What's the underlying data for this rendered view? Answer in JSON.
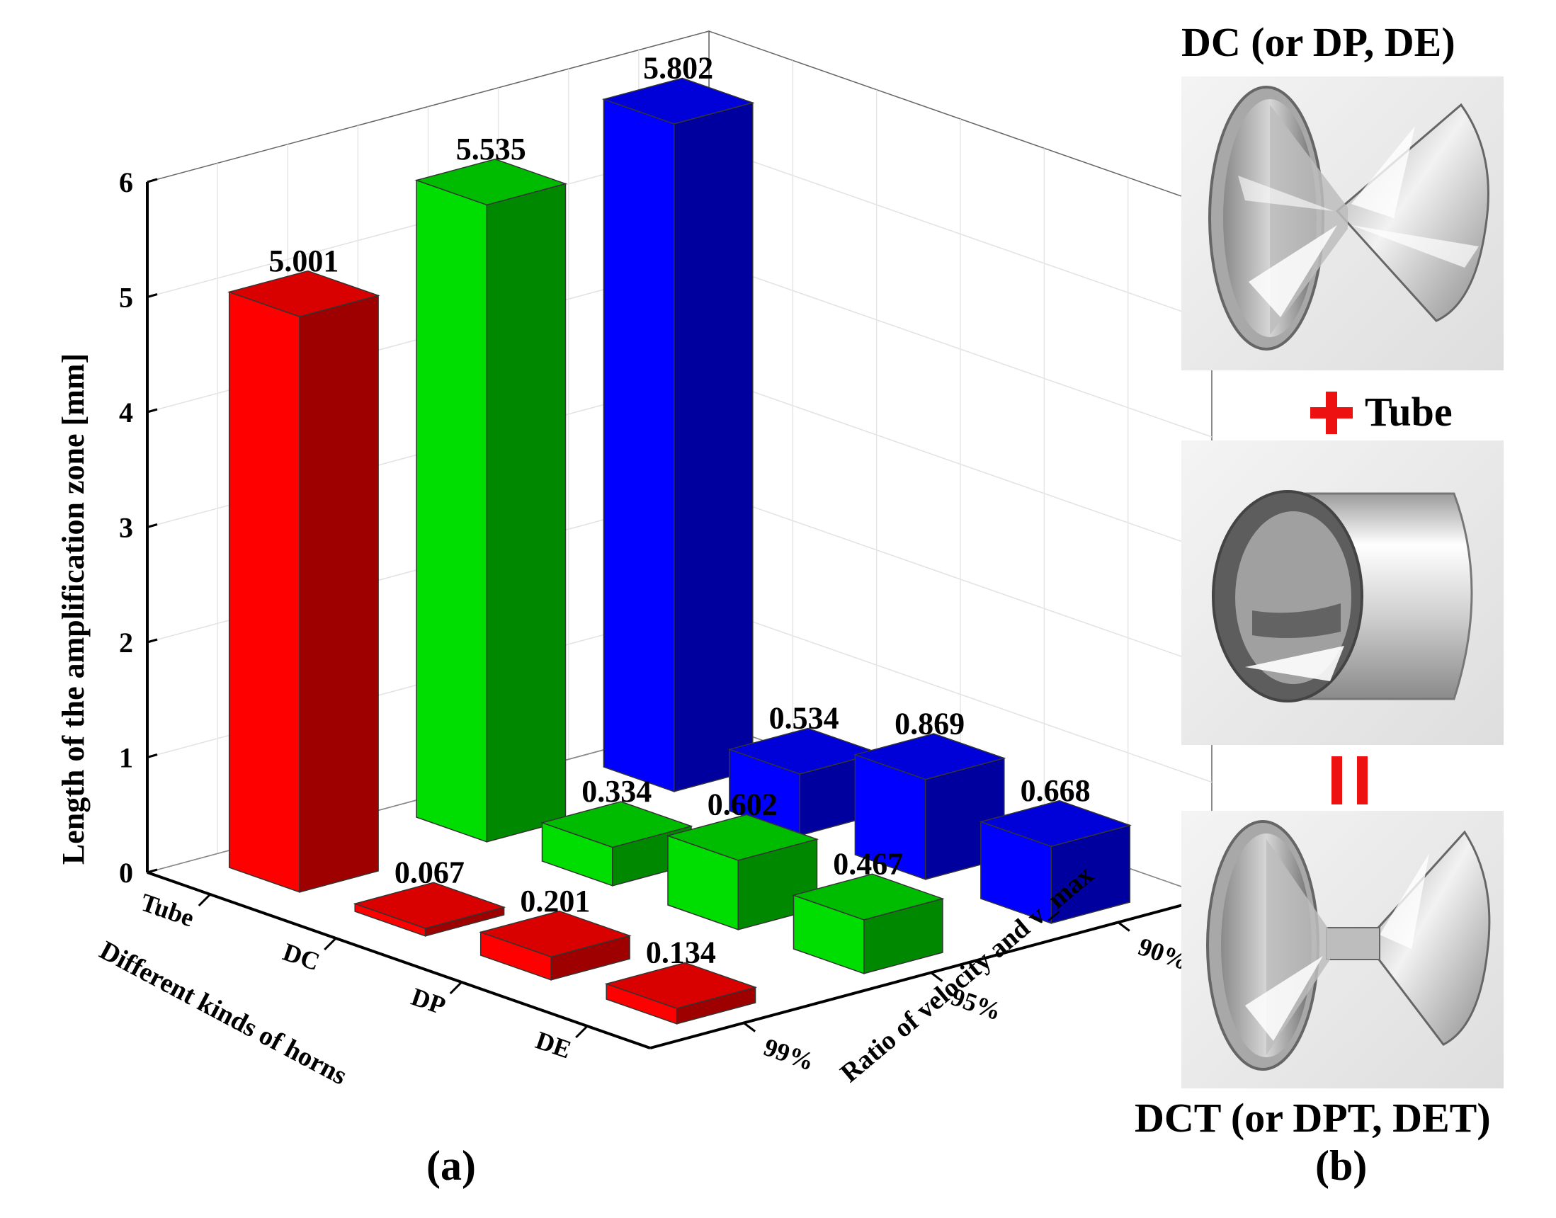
{
  "chart_data": {
    "type": "bar3d",
    "zlabel": "Length of the amplification zone [mm]",
    "xlabel": "Different kinds of horns",
    "ylabel": "Ratio of velocity and v_max",
    "x_categories": [
      "Tube",
      "DC",
      "DP",
      "DE"
    ],
    "y_categories": [
      "90%",
      "95%",
      "99%"
    ],
    "zlim": [
      0,
      6
    ],
    "z_ticks": [
      "0",
      "1",
      "2",
      "3",
      "4",
      "5",
      "6"
    ],
    "series": [
      {
        "name": "90%",
        "color": "#0000ff",
        "values": [
          5.802,
          0.534,
          0.869,
          0.668
        ],
        "labels": [
          "5.802",
          "0.534",
          "0.869",
          "0.668"
        ]
      },
      {
        "name": "95%",
        "color": "#00dd00",
        "values": [
          5.535,
          0.334,
          0.602,
          0.467
        ],
        "labels": [
          "5.535",
          "0.334",
          "0.602",
          "0.467"
        ]
      },
      {
        "name": "99%",
        "color": "#ff0000",
        "values": [
          5.001,
          0.067,
          0.201,
          0.134
        ],
        "labels": [
          "5.001",
          "0.067",
          "0.201",
          "0.134"
        ]
      }
    ],
    "panel_label": "(a)"
  },
  "panel_b": {
    "top_title": "DC (or DP, DE)",
    "plus_text": "Tube",
    "bottom_title": "DCT (or DPT, DET)",
    "panel_label": "(b)",
    "plus_color": "#ee1111",
    "equals_color": "#ee1111",
    "images": [
      "double-cone-horn",
      "tube",
      "double-cone-horn-with-tube"
    ]
  }
}
